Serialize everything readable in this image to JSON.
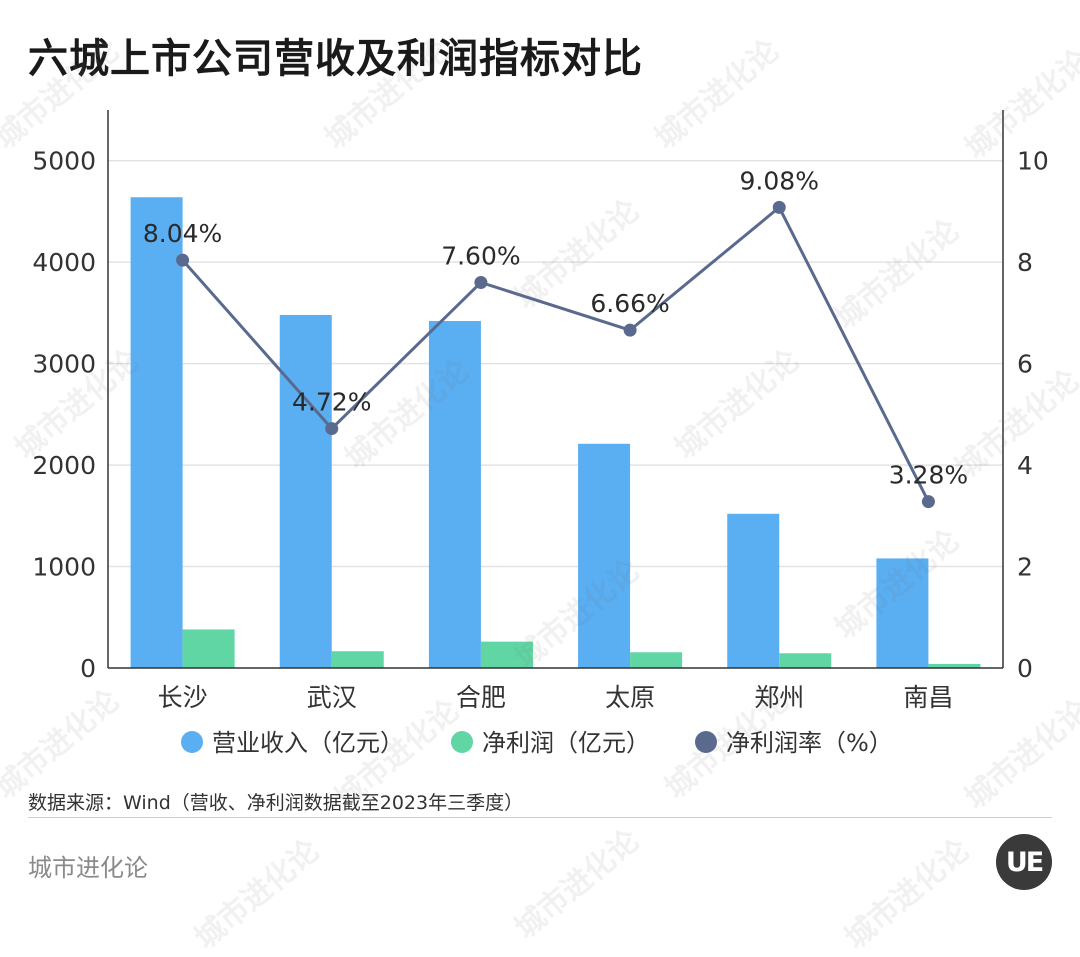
{
  "title": "六城上市公司营收及利润指标对比",
  "source": "数据来源：Wind（营收、净利润数据截至2023年三季度）",
  "brand": "城市进化论",
  "logo": "UE",
  "watermark": "城市进化论",
  "colors": {
    "revenue": "#5aaef2",
    "profit": "#5fd6a3",
    "margin": "#5a6a8f",
    "grid": "#e3e3e3",
    "axis": "#333333"
  },
  "chart_data": {
    "type": "bar",
    "categories": [
      "长沙",
      "武汉",
      "合肥",
      "太原",
      "郑州",
      "南昌"
    ],
    "series": [
      {
        "name": "营业收入（亿元）",
        "type": "bar",
        "axis": "left",
        "values": [
          4640,
          3480,
          3420,
          2210,
          1520,
          1080
        ]
      },
      {
        "name": "净利润（亿元）",
        "type": "bar",
        "axis": "left",
        "values": [
          380,
          165,
          260,
          155,
          145,
          40
        ]
      },
      {
        "name": "净利润率（%）",
        "type": "line",
        "axis": "right",
        "values": [
          8.04,
          4.72,
          7.6,
          6.66,
          9.08,
          3.28
        ],
        "labels": [
          "8.04%",
          "4.72%",
          "7.60%",
          "6.66%",
          "9.08%",
          "3.28%"
        ]
      }
    ],
    "y_left": {
      "ylim": [
        0,
        5500
      ],
      "ticks": [
        "0",
        "1000",
        "2000",
        "3000",
        "4000",
        "5000"
      ]
    },
    "y_right": {
      "ylim": [
        0,
        11
      ],
      "ticks": [
        "0",
        "2",
        "4",
        "6",
        "8",
        "10"
      ]
    },
    "legend": "bottom",
    "grid": true
  }
}
